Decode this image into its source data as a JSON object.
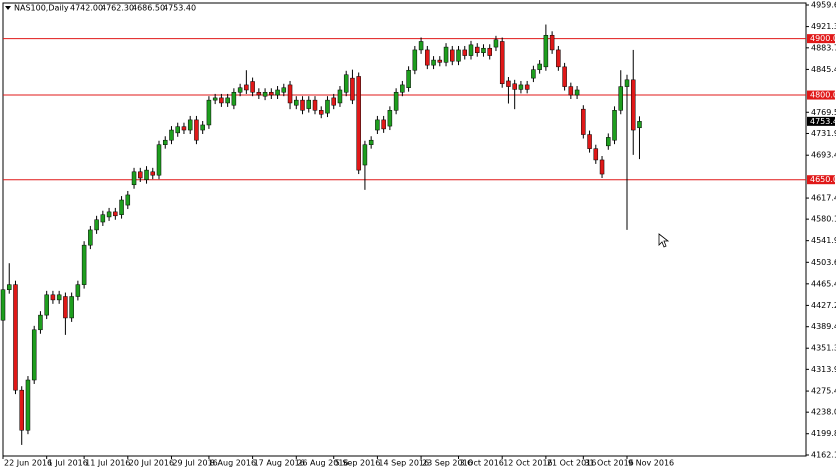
{
  "chart_data": {
    "type": "candlestick",
    "title": "NAS100,Daily",
    "header_values": [
      "4742.00",
      "4762.30",
      "4686.50",
      "4753.40"
    ],
    "x": [
      "22 Jun 2016",
      null,
      null,
      null,
      null,
      null,
      null,
      "1 Jul 2016",
      null,
      null,
      null,
      null,
      null,
      "11 Jul 2016",
      null,
      null,
      null,
      null,
      null,
      null,
      "20 Jul 2016",
      null,
      null,
      null,
      null,
      null,
      null,
      "29 Jul 2016",
      null,
      null,
      null,
      null,
      null,
      "8 Aug 2016",
      null,
      null,
      null,
      null,
      null,
      null,
      "17 Aug 2016",
      null,
      null,
      null,
      null,
      null,
      null,
      "26 Aug 2016",
      null,
      null,
      null,
      null,
      null,
      "5 Sep 2016",
      null,
      null,
      null,
      null,
      null,
      null,
      "14 Sep 2016",
      null,
      null,
      null,
      null,
      null,
      null,
      "23 Sep 2016",
      null,
      null,
      null,
      null,
      null,
      "3 Oct 2016",
      null,
      null,
      null,
      null,
      null,
      null,
      "12 Oct 2016",
      null,
      null,
      null,
      null,
      null,
      null,
      "21 Oct 2016",
      null,
      null,
      null,
      null,
      null,
      "31 Oct 2016",
      null,
      null,
      null,
      null,
      null,
      null,
      "9 Nov 2016",
      null,
      null
    ],
    "open": [
      4401,
      4455,
      4464,
      4277,
      4206,
      4295,
      4384,
      4410,
      4446,
      4437,
      4443,
      4405,
      4443,
      4464,
      4534,
      4561,
      4575,
      4584,
      4593,
      4588,
      4605,
      4641,
      4664,
      4650,
      4664,
      4658,
      4712,
      4720,
      4733,
      4744,
      4738,
      4756,
      4738,
      4747,
      4791,
      4795,
      4786,
      4782,
      4805,
      4818,
      4824,
      4805,
      4798,
      4805,
      4800,
      4805,
      4818,
      4782,
      4791,
      4776,
      4791,
      4773,
      4768,
      4795,
      4786,
      4805,
      4830,
      4833,
      4676,
      4712,
      4738,
      4756,
      4745,
      4773,
      4805,
      4813,
      4844,
      4880,
      4880,
      4853,
      4862,
      4858,
      4880,
      4860,
      4880,
      4870,
      4885,
      4875,
      4883,
      4885,
      4895,
      4825,
      4820,
      4810,
      4818,
      4830,
      4845,
      4850,
      4906,
      4880,
      4850,
      4815,
      4800,
      4775,
      4730,
      4705,
      4685,
      4710,
      4720,
      4773,
      4815,
      4827,
      4742
    ],
    "high": [
      4462,
      4502,
      4471,
      4284,
      4302,
      4391,
      4417,
      4453,
      4453,
      4453,
      4450,
      4450,
      4471,
      4541,
      4568,
      4586,
      4595,
      4600,
      4600,
      4621,
      4630,
      4671,
      4671,
      4674,
      4671,
      4719,
      4727,
      4745,
      4751,
      4751,
      4763,
      4763,
      4754,
      4798,
      4802,
      4802,
      4802,
      4812,
      4820,
      4844,
      4831,
      4812,
      4812,
      4812,
      4816,
      4820,
      4825,
      4798,
      4798,
      4798,
      4798,
      4780,
      4798,
      4802,
      4816,
      4843,
      4845,
      4840,
      4719,
      4727,
      4763,
      4763,
      4780,
      4812,
      4825,
      4851,
      4887,
      4902,
      4887,
      4869,
      4869,
      4892,
      4887,
      4887,
      4887,
      4896,
      4892,
      4890,
      4890,
      4905,
      4902,
      4832,
      4827,
      4825,
      4825,
      4852,
      4862,
      4925,
      4913,
      4887,
      4857,
      4822,
      4816,
      4782,
      4737,
      4712,
      4692,
      4732,
      4780,
      4844,
      4836,
      4880,
      4762.3
    ],
    "low": [
      4394,
      4448,
      4270,
      4180,
      4199,
      4288,
      4377,
      4403,
      4430,
      4430,
      4375,
      4398,
      4436,
      4457,
      4527,
      4554,
      4568,
      4577,
      4579,
      4581,
      4598,
      4634,
      4646,
      4643,
      4651,
      4651,
      4705,
      4713,
      4726,
      4731,
      4731,
      4713,
      4731,
      4740,
      4784,
      4779,
      4779,
      4775,
      4798,
      4802,
      4798,
      4793,
      4791,
      4793,
      4793,
      4798,
      4775,
      4775,
      4766,
      4769,
      4766,
      4759,
      4761,
      4775,
      4779,
      4798,
      4784,
      4660,
      4632,
      4705,
      4731,
      4733,
      4738,
      4766,
      4798,
      4806,
      4837,
      4873,
      4846,
      4846,
      4851,
      4851,
      4853,
      4853,
      4863,
      4863,
      4868,
      4868,
      4863,
      4878,
      4813,
      4785,
      4775,
      4803,
      4803,
      4823,
      4838,
      4843,
      4873,
      4843,
      4808,
      4793,
      4793,
      4723,
      4698,
      4678,
      4653,
      4703,
      4713,
      4766,
      4561,
      4694,
      4686.5
    ],
    "close": [
      4455,
      4464,
      4277,
      4206,
      4295,
      4384,
      4410,
      4446,
      4437,
      4446,
      4405,
      4443,
      4464,
      4534,
      4561,
      4579,
      4588,
      4593,
      4586,
      4614,
      4623,
      4664,
      4653,
      4667,
      4658,
      4712,
      4720,
      4738,
      4744,
      4738,
      4756,
      4720,
      4747,
      4791,
      4795,
      4786,
      4795,
      4805,
      4813,
      4809,
      4805,
      4800,
      4805,
      4800,
      4809,
      4813,
      4786,
      4791,
      4773,
      4791,
      4773,
      4766,
      4791,
      4782,
      4809,
      4836,
      4791,
      4667,
      4712,
      4720,
      4756,
      4740,
      4773,
      4805,
      4818,
      4844,
      4880,
      4895,
      4853,
      4862,
      4858,
      4885,
      4860,
      4880,
      4870,
      4889,
      4875,
      4883,
      4870,
      4898,
      4820,
      4815,
      4810,
      4818,
      4810,
      4845,
      4855,
      4906,
      4880,
      4850,
      4815,
      4800,
      4809,
      4730,
      4705,
      4685,
      4660,
      4725,
      4773,
      4815,
      4827,
      4738,
      4753.4
    ],
    "up_color": "#1e9e1e",
    "down_color": "#e01818",
    "wick_color": "#000000",
    "ylim": [
      4162.1,
      4959.6
    ],
    "yticks": [
      {
        "value": 4959.6,
        "label": "4959.60"
      },
      4921.35,
      {
        "value": 4883.7,
        "label": "4883.70"
      },
      4845.45,
      {
        "value": 4769.5,
        "label": "4769.50"
      },
      {
        "value": 4731.9,
        "label": "4731.90"
      },
      {
        "value": 4693.4,
        "label": "4693.40"
      },
      4617.45,
      {
        "value": 4580.1,
        "label": "4580.10"
      },
      4541.95,
      {
        "value": 4503.6,
        "label": "4503.60"
      },
      4465.45,
      {
        "value": 4427.2,
        "label": "4427.20"
      },
      4389.45,
      4351.35,
      {
        "value": 4313.9,
        "label": "4313.90"
      },
      {
        "value": 4275.4,
        "label": "4275.40"
      },
      {
        "value": 4238,
        "label": "4238.00"
      },
      {
        "value": 4199.8,
        "label": "4199.80"
      },
      {
        "value": 4162.1,
        "label": "4162.10"
      }
    ],
    "levels": [
      {
        "value": 4900,
        "label": "4900.00"
      },
      {
        "value": 4800,
        "label": "4800.00"
      },
      {
        "value": 4650,
        "label": "4650.00"
      }
    ],
    "level_color": "#e01818",
    "current_price": {
      "value": 4753.4,
      "label": "4753.40"
    },
    "grid": false
  }
}
